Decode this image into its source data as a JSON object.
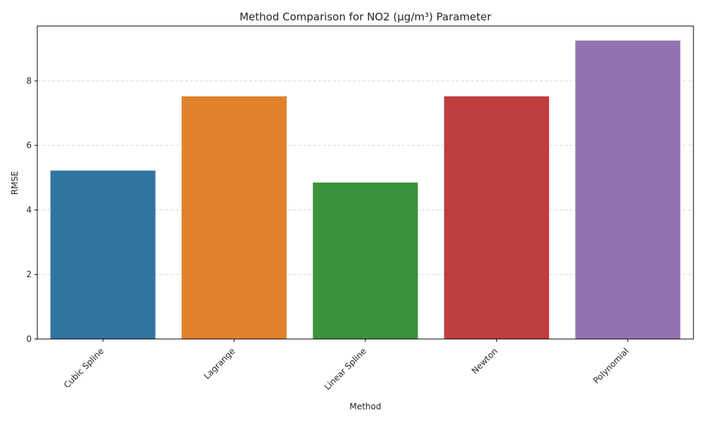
{
  "chart_data": {
    "type": "bar",
    "title": "Method Comparison for NO2 (µg/m³) Parameter",
    "xlabel": "Method",
    "ylabel": "RMSE",
    "categories": [
      "Cubic Spline",
      "Lagrange",
      "Linear Spline",
      "Newton",
      "Polynomial"
    ],
    "values": [
      5.22,
      7.52,
      4.85,
      7.52,
      9.25
    ],
    "colors": [
      "#3274a1",
      "#e1812c",
      "#3a923a",
      "#c03d3e",
      "#9372b2"
    ],
    "ylim": [
      0,
      9.7
    ],
    "yticks": [
      0,
      2,
      4,
      6,
      8
    ],
    "grid": "y-dashed",
    "legend": "none"
  }
}
